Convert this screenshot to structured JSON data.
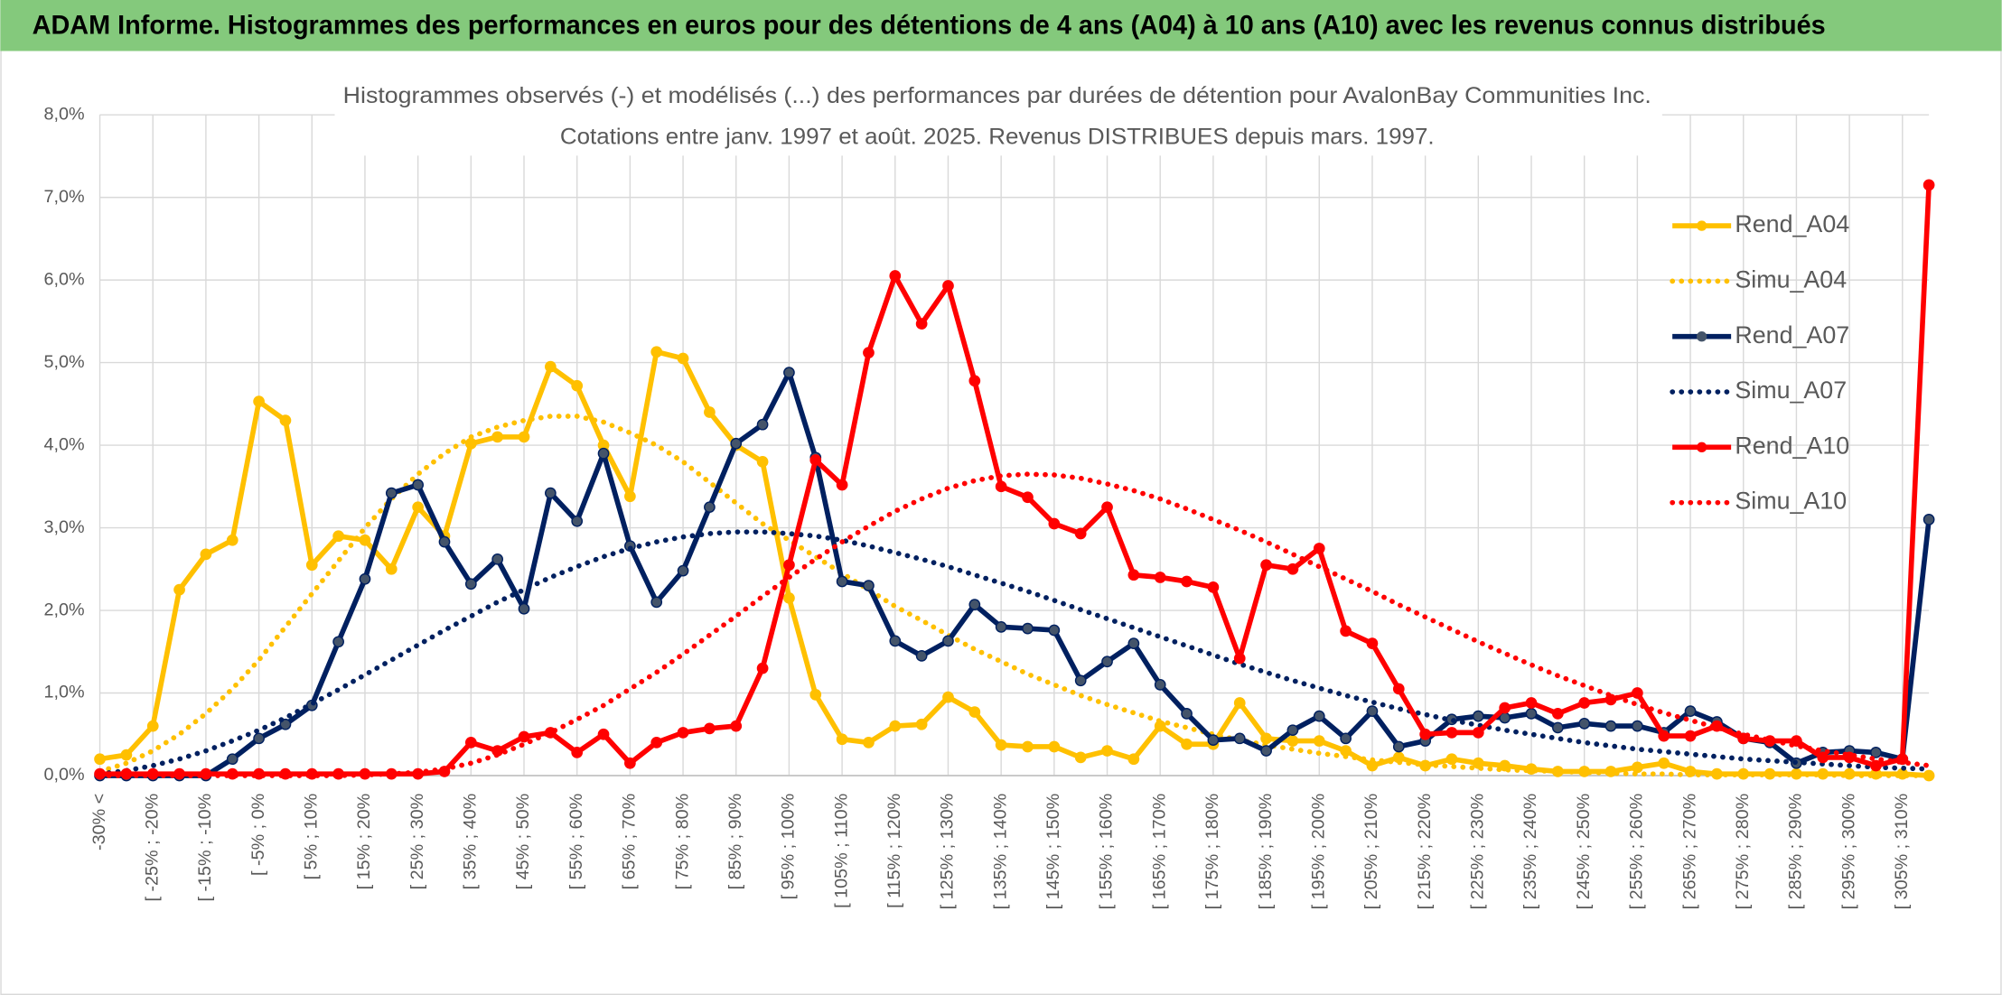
{
  "header": {
    "title": "ADAM Informe. Histogrammes des performances en euros pour des détentions de 4 ans (A04) à 10 ans (A10) avec les revenus connus distribués"
  },
  "chart_data": {
    "type": "line",
    "title": "Histogrammes observés (-) et modélisés (...) des performances par durées de détention pour AvalonBay Communities Inc.",
    "subtitle": "Cotations entre janv. 1997 et août. 2025. Revenus DISTRIBUES depuis mars. 1997.",
    "categories": [
      "-30% <",
      null,
      "[ -25% ; -20%",
      null,
      "[ -15% ; -10%",
      null,
      "[ -5% ; 0%",
      null,
      "[ 5% ; 10%",
      null,
      "[ 15% ; 20%",
      null,
      "[ 25% ; 30%",
      null,
      "[ 35% ; 40%",
      null,
      "[ 45% ; 50%",
      null,
      "[ 55% ; 60%",
      null,
      "[ 65% ; 70%",
      null,
      "[ 75% ; 80%",
      null,
      "[ 85% ; 90%",
      null,
      "[ 95% ; 100%",
      null,
      "[ 105% ; 110%",
      null,
      "[ 115% ; 120%",
      null,
      "[ 125% ; 130%",
      null,
      "[ 135% ; 140%",
      null,
      "[ 145% ; 150%",
      null,
      "[ 155% ; 160%",
      null,
      "[ 165% ; 170%",
      null,
      "[ 175% ; 180%",
      null,
      "[ 185% ; 190%",
      null,
      "[ 195% ; 200%",
      null,
      "[ 205% ; 210%",
      null,
      "[ 215% ; 220%",
      null,
      "[ 225% ; 230%",
      null,
      "[ 235% ; 240%",
      null,
      "[ 245% ; 250%",
      null,
      "[ 255% ; 260%",
      null,
      "[ 265% ; 270%",
      null,
      "[ 275% ; 280%",
      null,
      "[ 285% ; 290%",
      null,
      "[ 295% ; 300%",
      null,
      "[ 305% ; 310%",
      null
    ],
    "series": [
      {
        "name": "Rend_A04",
        "color": "#ffc000",
        "style": "solid",
        "marker": true,
        "values": [
          0.2,
          0.25,
          0.6,
          2.25,
          2.68,
          2.85,
          4.53,
          4.3,
          2.55,
          2.9,
          2.85,
          2.5,
          3.25,
          2.9,
          4.02,
          4.1,
          4.1,
          4.95,
          4.72,
          4.0,
          3.38,
          5.13,
          5.05,
          4.4,
          4.0,
          3.8,
          2.15,
          0.98,
          0.44,
          0.4,
          0.6,
          0.62,
          0.95,
          0.77,
          0.37,
          0.35,
          0.35,
          0.22,
          0.3,
          0.2,
          0.6,
          0.38,
          0.38,
          0.88,
          0.45,
          0.42,
          0.42,
          0.3,
          0.12,
          0.22,
          0.12,
          0.2,
          0.15,
          0.12,
          0.08,
          0.05,
          0.05,
          0.05,
          0.1,
          0.15,
          0.05,
          0.02,
          0.02,
          0.02,
          0.02,
          0.02,
          0.02,
          0.02,
          0.02,
          0.0
        ]
      },
      {
        "name": "Simu_A04",
        "color": "#ffc000",
        "style": "dotted",
        "marker": false,
        "values": [
          0.05,
          0.15,
          0.3,
          0.5,
          0.75,
          1.05,
          1.4,
          1.8,
          2.2,
          2.6,
          3.0,
          3.35,
          3.65,
          3.9,
          4.1,
          4.22,
          4.3,
          4.35,
          4.35,
          4.28,
          4.15,
          4.0,
          3.8,
          3.55,
          3.3,
          3.05,
          2.85,
          2.65,
          2.45,
          2.25,
          2.05,
          1.88,
          1.7,
          1.53,
          1.38,
          1.23,
          1.1,
          0.97,
          0.86,
          0.76,
          0.66,
          0.58,
          0.5,
          0.43,
          0.37,
          0.32,
          0.27,
          0.23,
          0.19,
          0.16,
          0.13,
          0.11,
          0.09,
          0.07,
          0.06,
          0.05,
          0.04,
          0.03,
          0.02,
          0.02,
          0.01,
          0.01,
          0.01,
          0.01,
          0.01,
          0.01,
          0,
          0,
          0,
          0
        ]
      },
      {
        "name": "Rend_A07",
        "color": "#002060",
        "style": "solid",
        "marker": true,
        "values": [
          0,
          0,
          0,
          0,
          0,
          0.2,
          0.45,
          0.62,
          0.85,
          1.62,
          2.38,
          3.42,
          3.52,
          2.83,
          2.32,
          2.62,
          2.02,
          3.42,
          3.08,
          3.9,
          2.78,
          2.1,
          2.48,
          3.25,
          4.02,
          4.25,
          4.88,
          3.85,
          2.35,
          2.3,
          1.63,
          1.45,
          1.63,
          2.07,
          1.8,
          1.78,
          1.76,
          1.15,
          1.38,
          1.6,
          1.1,
          0.75,
          0.43,
          0.45,
          0.3,
          0.55,
          0.72,
          0.45,
          0.78,
          0.35,
          0.42,
          0.68,
          0.72,
          0.7,
          0.75,
          0.58,
          0.63,
          0.6,
          0.6,
          0.52,
          0.78,
          0.65,
          0.45,
          0.4,
          0.15,
          0.28,
          0.3,
          0.28,
          0.2,
          3.1
        ]
      },
      {
        "name": "Simu_A07",
        "color": "#002060",
        "style": "dotted",
        "marker": false,
        "values": [
          0.02,
          0.06,
          0.12,
          0.2,
          0.3,
          0.42,
          0.55,
          0.7,
          0.87,
          1.04,
          1.22,
          1.4,
          1.58,
          1.76,
          1.93,
          2.1,
          2.25,
          2.4,
          2.53,
          2.65,
          2.75,
          2.83,
          2.89,
          2.93,
          2.95,
          2.95,
          2.93,
          2.9,
          2.85,
          2.78,
          2.7,
          2.62,
          2.53,
          2.43,
          2.33,
          2.23,
          2.12,
          2.01,
          1.9,
          1.79,
          1.68,
          1.57,
          1.46,
          1.35,
          1.25,
          1.15,
          1.06,
          0.97,
          0.89,
          0.81,
          0.74,
          0.67,
          0.61,
          0.55,
          0.5,
          0.45,
          0.4,
          0.36,
          0.32,
          0.29,
          0.26,
          0.23,
          0.2,
          0.18,
          0.16,
          0.14,
          0.12,
          0.1,
          0.09,
          0.08
        ]
      },
      {
        "name": "Rend_A10",
        "color": "#ff0000",
        "style": "solid",
        "marker": true,
        "values": [
          0.02,
          0.02,
          0.02,
          0.02,
          0.02,
          0.02,
          0.02,
          0.02,
          0.02,
          0.02,
          0.02,
          0.02,
          0.02,
          0.05,
          0.4,
          0.3,
          0.47,
          0.52,
          0.28,
          0.5,
          0.15,
          0.4,
          0.52,
          0.57,
          0.6,
          1.3,
          2.55,
          3.82,
          3.52,
          5.12,
          6.05,
          5.47,
          5.93,
          4.78,
          3.5,
          3.37,
          3.05,
          2.93,
          3.25,
          2.43,
          2.4,
          2.35,
          2.28,
          1.42,
          2.55,
          2.5,
          2.75,
          1.75,
          1.6,
          1.05,
          0.5,
          0.52,
          0.52,
          0.82,
          0.88,
          0.75,
          0.88,
          0.92,
          1.0,
          0.48,
          0.48,
          0.6,
          0.45,
          0.42,
          0.42,
          0.22,
          0.22,
          0.12,
          0.2,
          7.15
        ]
      },
      {
        "name": "Simu_A10",
        "color": "#ff0000",
        "style": "dotted",
        "marker": false,
        "values": [
          0,
          0,
          0,
          0,
          0,
          0,
          0,
          0,
          0,
          0,
          0.01,
          0.02,
          0.04,
          0.08,
          0.15,
          0.25,
          0.38,
          0.52,
          0.68,
          0.85,
          1.05,
          1.25,
          1.47,
          1.7,
          1.93,
          2.17,
          2.4,
          2.62,
          2.83,
          3.02,
          3.2,
          3.35,
          3.48,
          3.57,
          3.63,
          3.65,
          3.64,
          3.6,
          3.53,
          3.45,
          3.35,
          3.23,
          3.1,
          2.97,
          2.83,
          2.68,
          2.53,
          2.38,
          2.23,
          2.07,
          1.92,
          1.77,
          1.62,
          1.48,
          1.34,
          1.21,
          1.09,
          0.97,
          0.86,
          0.76,
          0.67,
          0.58,
          0.5,
          0.43,
          0.36,
          0.3,
          0.25,
          0.2,
          0.16,
          0.12
        ]
      }
    ],
    "ylim": [
      0,
      8
    ],
    "yticks": [
      {
        "value": 0,
        "label": "0,0%"
      },
      {
        "value": 1,
        "label": "1,0%"
      },
      {
        "value": 2,
        "label": "2,0%"
      },
      {
        "value": 3,
        "label": "3,0%"
      },
      {
        "value": 4,
        "label": "4,0%"
      },
      {
        "value": 5,
        "label": "5,0%"
      },
      {
        "value": 6,
        "label": "6,0%"
      },
      {
        "value": 7,
        "label": "7,0%"
      },
      {
        "value": 8,
        "label": "8,0%"
      }
    ],
    "grid": true,
    "legend": "right"
  }
}
